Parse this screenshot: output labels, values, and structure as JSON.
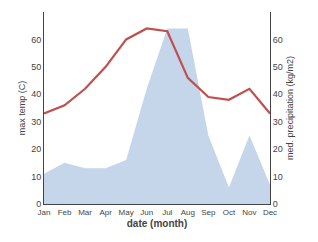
{
  "chart_data": {
    "type": "line",
    "categories": [
      "Jan",
      "Feb",
      "Mar",
      "Apr",
      "May",
      "Jun",
      "Jul",
      "Aug",
      "Sep",
      "Oct",
      "Nov",
      "Dec"
    ],
    "series": [
      {
        "type": "area",
        "color": "#c5d5ea",
        "axis": "y2",
        "values": [
          11,
          15,
          13,
          13,
          16,
          42,
          64,
          64,
          25,
          6,
          25,
          7
        ]
      },
      {
        "type": "line",
        "color": "#c0504d",
        "values": [
          33,
          36,
          42,
          50,
          60,
          64,
          63,
          46,
          39,
          38,
          42,
          33
        ]
      }
    ],
    "xlabel": "date (month)",
    "ylabel": "max temp (C)",
    "y2label": "med. precipitation (kg/m2)",
    "ylim": [
      0,
      70
    ],
    "yticks": [
      0,
      10,
      20,
      30,
      40,
      50,
      60
    ],
    "y2lim": [
      0,
      70
    ],
    "y2ticks": [
      0,
      10,
      20,
      30,
      40,
      50,
      60
    ],
    "grid": false
  }
}
